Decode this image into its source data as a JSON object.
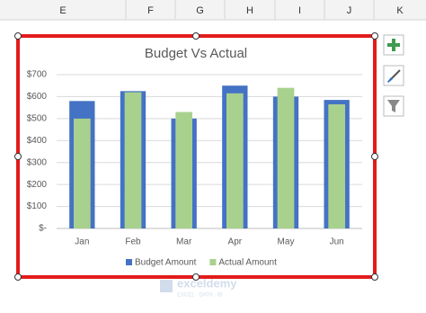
{
  "sheet": {
    "columns": [
      "E",
      "F",
      "G",
      "H",
      "I",
      "J",
      "K"
    ]
  },
  "watermark": {
    "name": "exceldemy",
    "tagline": "EXCEL · DATA · BI"
  },
  "chart_data": {
    "type": "bar",
    "title": "Budget Vs Actual",
    "categories": [
      "Jan",
      "Feb",
      "Mar",
      "Apr",
      "May",
      "Jun"
    ],
    "series": [
      {
        "name": "Budget Amount",
        "color": "#4472c4",
        "values": [
          580,
          625,
          500,
          650,
          600,
          585
        ]
      },
      {
        "name": "Actual Amount",
        "color": "#a9d18e",
        "values": [
          500,
          620,
          530,
          615,
          640,
          565
        ]
      }
    ],
    "ylim": [
      0,
      700
    ],
    "yticks": [
      {
        "value": 0,
        "label": "$-"
      },
      {
        "value": 100,
        "label": "$100"
      },
      {
        "value": 200,
        "label": "$200"
      },
      {
        "value": 300,
        "label": "$300"
      },
      {
        "value": 400,
        "label": "$400"
      },
      {
        "value": 500,
        "label": "$500"
      },
      {
        "value": 600,
        "label": "$600"
      },
      {
        "value": 700,
        "label": "$700"
      }
    ],
    "grid": true,
    "legend": "bottom"
  }
}
